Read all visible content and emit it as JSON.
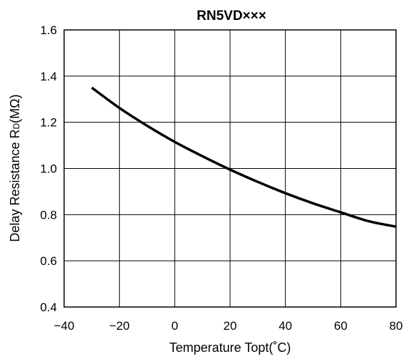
{
  "chart_data": {
    "type": "line",
    "title": "RN5VD×××",
    "xlabel": "Temperature Topt(˚C)",
    "ylabel": {
      "prefix": "Delay  Resistance R",
      "subscript": "D",
      "suffix": "(MΩ)"
    },
    "xlim": [
      -40,
      80
    ],
    "ylim": [
      0.4,
      1.6
    ],
    "xticks": [
      -40,
      -20,
      0,
      20,
      40,
      60,
      80
    ],
    "yticks": [
      0.4,
      0.6,
      0.8,
      1.0,
      1.2,
      1.4,
      1.6
    ],
    "xtick_labels": [
      "−40",
      "−20",
      "0",
      "20",
      "40",
      "60",
      "80"
    ],
    "ytick_labels": [
      "0.4",
      "0.6",
      "0.8",
      "1.0",
      "1.2",
      "1.4",
      "1.6"
    ],
    "grid": true,
    "series": [
      {
        "color": "#000000",
        "x": [
          -30,
          -20,
          -10,
          0,
          10,
          20,
          30,
          40,
          50,
          60,
          70,
          80
        ],
        "y": [
          1.35,
          1.262,
          1.185,
          1.115,
          1.053,
          0.995,
          0.942,
          0.893,
          0.849,
          0.81,
          0.772,
          0.748
        ]
      }
    ]
  }
}
